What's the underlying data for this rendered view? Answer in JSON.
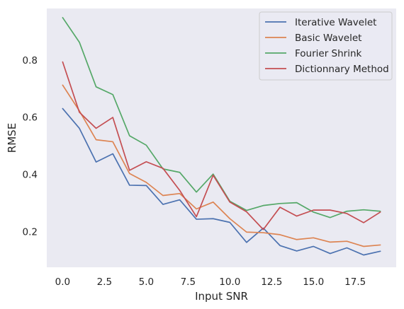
{
  "chart_data": {
    "type": "line",
    "title": "",
    "xlabel": "Input SNR",
    "ylabel": "RMSE",
    "xlim": [
      -0.95,
      19.95
    ],
    "ylim": [
      0.075,
      0.98
    ],
    "grid": false,
    "background": "#eaeaf2",
    "legend_position": "top-right",
    "xticks": [
      {
        "value": 0,
        "label": "0.0"
      },
      {
        "value": 2.5,
        "label": "2.5"
      },
      {
        "value": 5,
        "label": "5.0"
      },
      {
        "value": 7.5,
        "label": "7.5"
      },
      {
        "value": 10,
        "label": "10.0"
      },
      {
        "value": 12.5,
        "label": "12.5"
      },
      {
        "value": 15,
        "label": "15.0"
      },
      {
        "value": 17.5,
        "label": "17.5"
      }
    ],
    "yticks": [
      {
        "value": 0.2,
        "label": "0.2"
      },
      {
        "value": 0.4,
        "label": "0.4"
      },
      {
        "value": 0.6,
        "label": "0.6"
      },
      {
        "value": 0.8,
        "label": "0.8"
      }
    ],
    "x": [
      0,
      1,
      2,
      3,
      4,
      5,
      6,
      7,
      8,
      9,
      10,
      11,
      12,
      13,
      14,
      15,
      16,
      17,
      18,
      19
    ],
    "series": [
      {
        "name": "Iterative Wavelet",
        "color": "#4c72b0",
        "values": [
          0.63,
          0.561,
          0.443,
          0.472,
          0.362,
          0.361,
          0.295,
          0.311,
          0.243,
          0.245,
          0.232,
          0.162,
          0.212,
          0.151,
          0.132,
          0.148,
          0.123,
          0.143,
          0.118,
          0.131
        ]
      },
      {
        "name": "Basic Wavelet",
        "color": "#dd8452",
        "values": [
          0.712,
          0.622,
          0.521,
          0.514,
          0.403,
          0.372,
          0.326,
          0.333,
          0.279,
          0.303,
          0.245,
          0.198,
          0.196,
          0.189,
          0.172,
          0.178,
          0.163,
          0.166,
          0.148,
          0.153
        ]
      },
      {
        "name": "Fourier Shrink",
        "color": "#55a868",
        "values": [
          0.948,
          0.862,
          0.706,
          0.679,
          0.535,
          0.502,
          0.419,
          0.407,
          0.338,
          0.401,
          0.306,
          0.274,
          0.291,
          0.298,
          0.301,
          0.268,
          0.249,
          0.271,
          0.276,
          0.271
        ]
      },
      {
        "name": "Dictionnary Method",
        "color": "#c44e52",
        "values": [
          0.793,
          0.617,
          0.561,
          0.599,
          0.414,
          0.444,
          0.421,
          0.344,
          0.252,
          0.397,
          0.303,
          0.269,
          0.207,
          0.285,
          0.254,
          0.275,
          0.275,
          0.263,
          0.231,
          0.268
        ]
      }
    ]
  }
}
